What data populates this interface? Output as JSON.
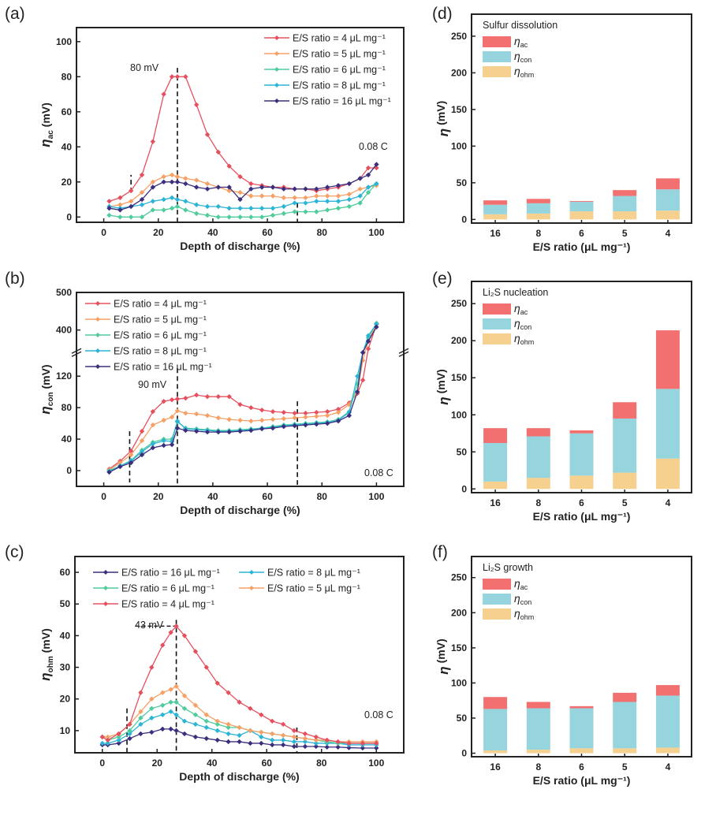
{
  "colors": {
    "es4": "#e5505f",
    "es5": "#f6a066",
    "es6": "#4fcc9c",
    "es8": "#2cb4d6",
    "es16": "#3b2f7d",
    "bar_ac": "#f27070",
    "bar_con": "#96d4de",
    "bar_ohm": "#f6d08e"
  },
  "chart_data": [
    {
      "panel_label": "(a)",
      "type": "line",
      "xlabel": "Depth of discharge (%)",
      "ylabel": {
        "symbol": "η",
        "sub": "ac",
        "unit": " (mV)"
      },
      "xlim": [
        -10,
        110
      ],
      "ylim": [
        -3,
        108
      ],
      "xticks": [
        0,
        20,
        40,
        60,
        80,
        100
      ],
      "yticks": [
        0,
        20,
        40,
        60,
        80,
        100
      ],
      "legend_placement": "top-right",
      "annotations": [
        "80 mV",
        "0.08 C"
      ],
      "reference_lines_x": [
        10,
        27,
        71
      ],
      "x": [
        2,
        6,
        10,
        14,
        18,
        22,
        25,
        27,
        30,
        34,
        38,
        42,
        46,
        50,
        54,
        58,
        62,
        66,
        70,
        74,
        78,
        82,
        86,
        90,
        94,
        97,
        100
      ],
      "series": [
        {
          "name": "E/S ratio = 4 μL mg⁻¹",
          "color_key": "es4",
          "values": [
            9,
            11,
            15,
            24,
            43,
            70,
            80,
            80,
            80,
            64,
            47,
            37,
            29,
            23,
            19,
            18,
            17,
            17,
            16,
            16,
            15,
            16,
            17,
            19,
            22,
            28,
            28
          ]
        },
        {
          "name": "E/S ratio = 5 μL mg⁻¹",
          "color_key": "es5",
          "values": [
            6,
            7,
            9,
            14,
            20,
            23,
            24,
            23,
            22,
            21,
            19,
            17,
            15,
            14,
            12,
            12,
            12,
            11,
            11,
            11,
            12,
            12,
            12,
            13,
            16,
            17,
            18
          ]
        },
        {
          "name": "E/S ratio = 6 μL mg⁻¹",
          "color_key": "es6",
          "values": [
            1,
            0,
            0,
            0,
            4,
            4,
            5,
            6,
            4,
            2,
            1,
            0,
            0,
            0,
            0,
            0,
            1,
            2,
            3,
            3,
            3,
            4,
            5,
            6,
            8,
            14,
            19
          ]
        },
        {
          "name": "E/S ratio = 8 μL mg⁻¹",
          "color_key": "es8",
          "values": [
            6,
            5,
            6,
            7,
            9,
            10,
            11,
            10,
            9,
            7,
            6,
            6,
            5,
            5,
            5,
            5,
            5,
            6,
            8,
            8,
            9,
            9,
            9,
            10,
            12,
            17,
            19
          ]
        },
        {
          "name": "E/S ratio = 16 μL mg⁻¹",
          "color_key": "es16",
          "values": [
            5,
            4,
            6,
            10,
            17,
            20,
            20,
            20,
            19,
            17,
            16,
            17,
            17,
            10,
            16,
            17,
            17,
            16,
            16,
            16,
            16,
            17,
            18,
            19,
            22,
            24,
            30
          ]
        }
      ]
    },
    {
      "panel_label": "(b)",
      "type": "line",
      "xlabel": "Depth of discharge (%)",
      "ylabel": {
        "symbol": "η",
        "sub": "con",
        "unit": " (mV)"
      },
      "xlim": [
        -10,
        110
      ],
      "ylim": [
        -20,
        500
      ],
      "y_axis_break": [
        150,
        340
      ],
      "xticks": [
        0,
        20,
        40,
        60,
        80,
        100
      ],
      "yticks": [
        0,
        40,
        80,
        120,
        400,
        500
      ],
      "legend_placement": "top-left",
      "annotations": [
        "90 mV",
        "0.08 C"
      ],
      "reference_lines_x": [
        9.5,
        27,
        71
      ],
      "x": [
        2,
        6,
        10,
        14,
        18,
        22,
        25,
        27,
        30,
        34,
        38,
        42,
        46,
        50,
        54,
        58,
        62,
        66,
        70,
        74,
        78,
        82,
        86,
        90,
        93,
        95,
        97,
        100
      ],
      "series": [
        {
          "name": "E/S ratio = 4 μL mg⁻¹",
          "color_key": "es4",
          "values": [
            2,
            12,
            25,
            50,
            75,
            88,
            90,
            91,
            92,
            96,
            94,
            94,
            94,
            84,
            80,
            77,
            75,
            74,
            73,
            73,
            74,
            75,
            78,
            86,
            98,
            115,
            350,
            415
          ]
        },
        {
          "name": "E/S ratio = 5 μL mg⁻¹",
          "color_key": "es5",
          "values": [
            1,
            10,
            20,
            38,
            58,
            64,
            68,
            76,
            73,
            72,
            70,
            67,
            65,
            64,
            63,
            64,
            65,
            66,
            67,
            68,
            69,
            70,
            74,
            84,
            100,
            140,
            370,
            418
          ]
        },
        {
          "name": "E/S ratio = 6 μL mg⁻¹",
          "color_key": "es6",
          "values": [
            0,
            6,
            13,
            26,
            36,
            40,
            40,
            62,
            54,
            53,
            52,
            51,
            51,
            52,
            53,
            54,
            56,
            58,
            59,
            60,
            61,
            62,
            65,
            75,
            110,
            150,
            380,
            418
          ]
        },
        {
          "name": "E/S ratio = 8 μL mg⁻¹",
          "color_key": "es8",
          "values": [
            -1,
            6,
            12,
            24,
            34,
            38,
            37,
            63,
            53,
            52,
            51,
            50,
            50,
            51,
            52,
            54,
            55,
            57,
            58,
            59,
            60,
            61,
            64,
            74,
            120,
            150,
            385,
            416
          ]
        },
        {
          "name": "E/S ratio = 16 μL mg⁻¹",
          "color_key": "es16",
          "values": [
            -2,
            5,
            10,
            20,
            29,
            32,
            33,
            54,
            51,
            50,
            49,
            49,
            49,
            50,
            51,
            53,
            54,
            56,
            57,
            58,
            59,
            60,
            63,
            70,
            100,
            150,
            370,
            408
          ]
        }
      ]
    },
    {
      "panel_label": "(c)",
      "type": "line",
      "xlabel": "Depth of discharge (%)",
      "ylabel": {
        "symbol": "η",
        "sub": "ohm",
        "unit": " (mV)"
      },
      "xlim": [
        -10,
        110
      ],
      "ylim": [
        3,
        65
      ],
      "xticks": [
        0,
        20,
        40,
        60,
        80,
        100
      ],
      "yticks": [
        10,
        20,
        30,
        40,
        50,
        60
      ],
      "legend_placement": "top, two columns",
      "annotations": [
        "43 mV",
        "0.08 C"
      ],
      "reference_lines_x": [
        9,
        27,
        71
      ],
      "x": [
        0,
        2,
        6,
        10,
        14,
        18,
        22,
        25,
        27,
        30,
        34,
        38,
        42,
        46,
        50,
        54,
        58,
        62,
        66,
        70,
        74,
        78,
        82,
        86,
        90,
        95,
        100
      ],
      "series": [
        {
          "name": "E/S ratio = 16 μL mg⁻¹",
          "color_key": "es16",
          "values": [
            5.5,
            5.5,
            6,
            7.5,
            9,
            9.5,
            10.5,
            10.5,
            10,
            9,
            8,
            7.5,
            7,
            6.5,
            6.5,
            6,
            6,
            5.5,
            5.5,
            5,
            5,
            5,
            4.8,
            4.8,
            4.6,
            4.5,
            4.5
          ]
        },
        {
          "name": "E/S ratio = 8 μL mg⁻¹",
          "color_key": "es8",
          "values": [
            6,
            6,
            7,
            9,
            12,
            14,
            15,
            16,
            15,
            13,
            12,
            11,
            10,
            9,
            8.5,
            10,
            8,
            7,
            7,
            6.5,
            6.5,
            6,
            6,
            6,
            5.5,
            5.5,
            5.5
          ]
        },
        {
          "name": "E/S ratio = 6 μL mg⁻¹",
          "color_key": "es6",
          "values": [
            8,
            7,
            8,
            10,
            14,
            17,
            18,
            19,
            19,
            17,
            15,
            13,
            12,
            11,
            11,
            10,
            9.5,
            9,
            8.5,
            8,
            7.5,
            7,
            6.5,
            6,
            6,
            6,
            6
          ]
        },
        {
          "name": "E/S ratio = 5 μL mg⁻¹",
          "color_key": "es5",
          "values": [
            8,
            8,
            9,
            12,
            16,
            20,
            22,
            23,
            24,
            21,
            18,
            15,
            13,
            12,
            11,
            10,
            9.5,
            9,
            8.5,
            8,
            7.5,
            7,
            7,
            6.5,
            6.5,
            6.5,
            6.5
          ]
        },
        {
          "name": "E/S ratio = 4 μL mg⁻¹",
          "color_key": "es4",
          "values": [
            8,
            7,
            9,
            12,
            22,
            30,
            37,
            41,
            43,
            40,
            35,
            30,
            25,
            22,
            19,
            17,
            15,
            13,
            12,
            10,
            9,
            8,
            7,
            6.5,
            6,
            6,
            6
          ]
        }
      ]
    },
    {
      "panel_label": "(d)",
      "type": "bar",
      "stacked": true,
      "title": "Sulfur dissolution",
      "xlabel": "E/S ratio (μL mg⁻¹)",
      "ylabel": {
        "symbol": "η",
        "sub": "",
        "unit": " (mV)"
      },
      "ylim": [
        -5,
        280
      ],
      "yticks": [
        0,
        50,
        100,
        150,
        200,
        250
      ],
      "legend_placement": "top-left",
      "categories": [
        "16",
        "8",
        "6",
        "5",
        "4"
      ],
      "series": [
        {
          "name": "ohm",
          "symbol": "η",
          "color_key": "bar_ohm",
          "values": [
            7,
            8,
            11,
            11,
            12
          ]
        },
        {
          "name": "con",
          "symbol": "η",
          "color_key": "bar_con",
          "values": [
            13,
            14,
            13,
            21,
            29
          ]
        },
        {
          "name": "ac",
          "symbol": "η",
          "color_key": "bar_ac",
          "values": [
            6,
            6,
            1,
            8,
            15
          ]
        }
      ]
    },
    {
      "panel_label": "(e)",
      "type": "bar",
      "stacked": true,
      "title": "Li₂S nucleation",
      "xlabel": "E/S ratio (μL mg⁻¹)",
      "ylabel": {
        "symbol": "η",
        "sub": "",
        "unit": " (mV)"
      },
      "ylim": [
        -5,
        280
      ],
      "yticks": [
        0,
        50,
        100,
        150,
        200,
        250
      ],
      "legend_placement": "top-left",
      "categories": [
        "16",
        "8",
        "6",
        "5",
        "4"
      ],
      "series": [
        {
          "name": "ohm",
          "symbol": "η",
          "color_key": "bar_ohm",
          "values": [
            10,
            15,
            18,
            22,
            41
          ]
        },
        {
          "name": "con",
          "symbol": "η",
          "color_key": "bar_con",
          "values": [
            52,
            56,
            57,
            73,
            94
          ]
        },
        {
          "name": "ac",
          "symbol": "η",
          "color_key": "bar_ac",
          "values": [
            20,
            11,
            4,
            22,
            79
          ]
        }
      ]
    },
    {
      "panel_label": "(f)",
      "type": "bar",
      "stacked": true,
      "title": "Li₂S growth",
      "xlabel": "E/S ratio (μL mg⁻¹)",
      "ylabel": {
        "symbol": "η",
        "sub": "",
        "unit": " (mV)"
      },
      "ylim": [
        -5,
        280
      ],
      "yticks": [
        0,
        50,
        100,
        150,
        200,
        250
      ],
      "legend_placement": "top-left",
      "categories": [
        "16",
        "8",
        "6",
        "5",
        "4"
      ],
      "series": [
        {
          "name": "ohm",
          "symbol": "η",
          "color_key": "bar_ohm",
          "values": [
            4,
            5,
            7,
            7,
            8
          ]
        },
        {
          "name": "con",
          "symbol": "η",
          "color_key": "bar_con",
          "values": [
            59,
            59,
            57,
            66,
            74
          ]
        },
        {
          "name": "ac",
          "symbol": "η",
          "color_key": "bar_ac",
          "values": [
            17,
            9,
            3,
            13,
            15
          ]
        }
      ]
    }
  ]
}
